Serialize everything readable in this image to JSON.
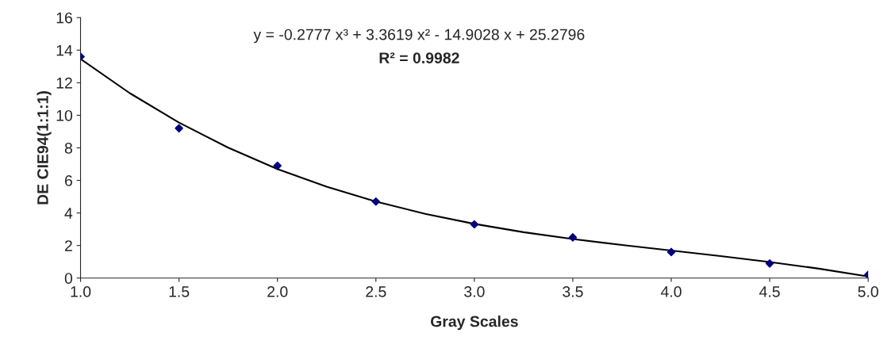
{
  "chart_data": {
    "type": "scatter",
    "xlabel": "Gray Scales",
    "ylabel": "DE CIE94(1:1:1)",
    "annotations": [
      "y = -0.2777 x³ + 3.3619 x² - 14.9028 x + 25.2796",
      "R² = 0.9982"
    ],
    "series": [
      {
        "color": "#000080",
        "marker": "diamond",
        "x": [
          1.0,
          1.5,
          2.0,
          2.5,
          3.0,
          3.5,
          4.0,
          4.5,
          5.0
        ],
        "values": [
          13.6,
          9.2,
          6.9,
          4.7,
          3.3,
          2.5,
          1.6,
          0.9,
          0.2
        ]
      },
      {
        "type": "line",
        "color": "#000000",
        "marker": "none",
        "x": [
          1.0,
          1.25,
          1.5,
          1.75,
          2.0,
          2.25,
          2.5,
          2.75,
          3.0,
          3.25,
          3.5,
          3.75,
          4.0,
          4.25,
          4.5,
          4.75,
          5.0
        ],
        "values": [
          13.46,
          11.36,
          9.55,
          8.01,
          6.7,
          5.61,
          4.7,
          3.95,
          3.33,
          2.82,
          2.4,
          2.03,
          1.69,
          1.35,
          0.99,
          0.58,
          0.1
        ]
      }
    ],
    "xlim": [
      1.0,
      5.0
    ],
    "xticks": [
      {
        "value": 1.0,
        "label": "1.0"
      },
      {
        "value": 1.5,
        "label": "1.5"
      },
      {
        "value": 2.0,
        "label": "2.0"
      },
      {
        "value": 2.5,
        "label": "2.5"
      },
      {
        "value": 3.0,
        "label": "3.0"
      },
      {
        "value": 3.5,
        "label": "3.5"
      },
      {
        "value": 4.0,
        "label": "4.0"
      },
      {
        "value": 4.5,
        "label": "4.5"
      },
      {
        "value": 5.0,
        "label": "5.0"
      }
    ],
    "ylim": [
      0,
      16
    ],
    "yticks": [
      0,
      2,
      4,
      6,
      8,
      10,
      12,
      14,
      16
    ],
    "grid": false,
    "legend": false
  }
}
